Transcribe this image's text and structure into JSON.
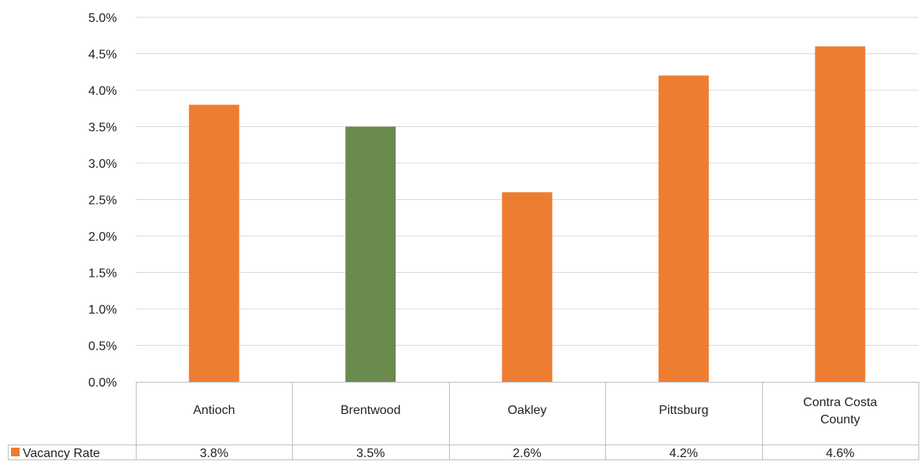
{
  "chart_data": {
    "type": "bar",
    "categories": [
      "Antioch",
      "Brentwood",
      "Oakley",
      "Pittsburg",
      "Contra Costa County"
    ],
    "series": [
      {
        "name": "Vacancy Rate",
        "values": [
          3.8,
          3.5,
          2.6,
          4.2,
          4.6
        ],
        "color": "#ED7D31",
        "highlight_color": "#6A8A4E",
        "highlight_category": "Brentwood"
      }
    ],
    "value_labels": [
      "3.8%",
      "3.5%",
      "2.6%",
      "4.2%",
      "4.6%"
    ],
    "ylim": [
      0,
      5.0
    ],
    "y_ticks": [
      "0.0%",
      "0.5%",
      "1.0%",
      "1.5%",
      "2.0%",
      "2.5%",
      "3.0%",
      "3.5%",
      "4.0%",
      "4.5%",
      "5.0%"
    ],
    "grid": true,
    "legend": "data-table-left",
    "data_table": true
  }
}
